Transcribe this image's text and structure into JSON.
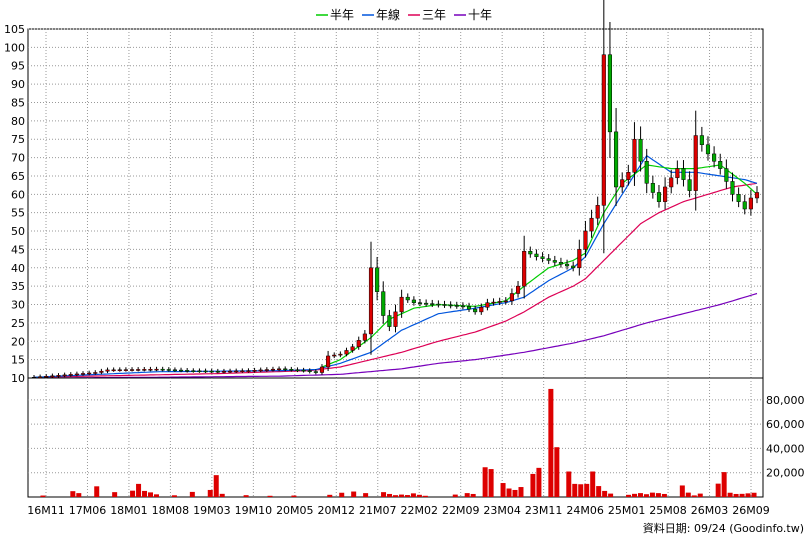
{
  "chart_data": [
    {
      "type": "candlestick",
      "title": "",
      "legend": {
        "placement": "top-center",
        "items": [
          {
            "name": "半年",
            "color": "#00cc00"
          },
          {
            "name": "年線",
            "color": "#0055dd"
          },
          {
            "name": "三年",
            "color": "#dd0055"
          },
          {
            "name": "十年",
            "color": "#7700bb"
          }
        ]
      },
      "ylim": [
        10,
        105
      ],
      "y_ticks": [
        10,
        15,
        20,
        25,
        30,
        35,
        40,
        45,
        50,
        55,
        60,
        65,
        70,
        75,
        80,
        85,
        90,
        95,
        100,
        105
      ],
      "x_ticks": [
        "16M11",
        "17M06",
        "18M01",
        "18M08",
        "19M03",
        "19M10",
        "20M05",
        "20M12",
        "21M07",
        "22M02",
        "22M09",
        "23M04",
        "23M11",
        "24M06",
        "25M01",
        "25M08",
        "26M03",
        "26M09"
      ],
      "colors": {
        "up": "#dd0000",
        "down": "#00aa00",
        "grid": "#999999"
      },
      "x_range": [
        0,
        118
      ],
      "anchors": {
        "close": [
          [
            0,
            10.2
          ],
          [
            10,
            11.5
          ],
          [
            12,
            12.2
          ],
          [
            20,
            12.4
          ],
          [
            25,
            12.0
          ],
          [
            30,
            11.8
          ],
          [
            35,
            12.0
          ],
          [
            40,
            12.5
          ],
          [
            44,
            12.0
          ],
          [
            46,
            11.5
          ],
          [
            47,
            13.0
          ],
          [
            48,
            16.0
          ],
          [
            50,
            16.5
          ],
          [
            52,
            18.5
          ],
          [
            54,
            22.0
          ],
          [
            55,
            40.0
          ],
          [
            57,
            27.0
          ],
          [
            58,
            24.0
          ],
          [
            60,
            32.0
          ],
          [
            62,
            30.5
          ],
          [
            66,
            30.0
          ],
          [
            70,
            29.5
          ],
          [
            72,
            28.0
          ],
          [
            74,
            30.5
          ],
          [
            77,
            31.0
          ],
          [
            79,
            35.0
          ],
          [
            80,
            44.5
          ],
          [
            82,
            43.0
          ],
          [
            84,
            42.0
          ],
          [
            86,
            41.0
          ],
          [
            88,
            40.0
          ],
          [
            90,
            50.0
          ],
          [
            92,
            57.0
          ],
          [
            93,
            98.0
          ],
          [
            94,
            77.0
          ],
          [
            95,
            62.0
          ],
          [
            97,
            66.0
          ],
          [
            98,
            75.0
          ],
          [
            100,
            63.0
          ],
          [
            102,
            58.0
          ],
          [
            103,
            62.0
          ],
          [
            105,
            67.0
          ],
          [
            107,
            61.0
          ],
          [
            108,
            76.0
          ],
          [
            110,
            71.0
          ],
          [
            112,
            67.0
          ],
          [
            114,
            60.0
          ],
          [
            116,
            56.0
          ],
          [
            117,
            59.0
          ],
          [
            118,
            60.5
          ]
        ],
        "sma_half": [
          [
            47,
            13.0
          ],
          [
            50,
            15.0
          ],
          [
            55,
            21.0
          ],
          [
            58,
            26.0
          ],
          [
            62,
            29.0
          ],
          [
            66,
            30.0
          ],
          [
            72,
            29.5
          ],
          [
            77,
            31.0
          ],
          [
            80,
            35.0
          ],
          [
            84,
            40.0
          ],
          [
            88,
            42.0
          ],
          [
            90,
            44.0
          ],
          [
            93,
            55.0
          ],
          [
            96,
            63.0
          ],
          [
            100,
            68.0
          ],
          [
            104,
            67.0
          ],
          [
            108,
            67.0
          ],
          [
            112,
            68.0
          ],
          [
            116,
            63.0
          ],
          [
            118,
            60.0
          ]
        ],
        "sma_year": [
          [
            0,
            10.2
          ],
          [
            20,
            11.7
          ],
          [
            40,
            12.0
          ],
          [
            46,
            12.3
          ],
          [
            50,
            14.0
          ],
          [
            55,
            17.0
          ],
          [
            60,
            23.0
          ],
          [
            66,
            27.5
          ],
          [
            72,
            29.0
          ],
          [
            77,
            30.5
          ],
          [
            80,
            32.0
          ],
          [
            84,
            36.5
          ],
          [
            88,
            40.0
          ],
          [
            90,
            43.0
          ],
          [
            93,
            52.0
          ],
          [
            96,
            60.0
          ],
          [
            99,
            68.0
          ],
          [
            100,
            70.5
          ],
          [
            104,
            66.0
          ],
          [
            108,
            66.0
          ],
          [
            112,
            65.0
          ],
          [
            116,
            64.0
          ],
          [
            118,
            63.0
          ]
        ],
        "sma_three": [
          [
            0,
            10.2
          ],
          [
            30,
            11.2
          ],
          [
            45,
            12.0
          ],
          [
            50,
            13.0
          ],
          [
            55,
            15.0
          ],
          [
            60,
            17.0
          ],
          [
            66,
            20.0
          ],
          [
            72,
            22.5
          ],
          [
            77,
            25.5
          ],
          [
            80,
            28.0
          ],
          [
            84,
            32.0
          ],
          [
            88,
            35.0
          ],
          [
            90,
            37.0
          ],
          [
            93,
            42.0
          ],
          [
            96,
            47.0
          ],
          [
            99,
            52.0
          ],
          [
            102,
            55.0
          ],
          [
            106,
            58.0
          ],
          [
            110,
            60.0
          ],
          [
            114,
            62.0
          ],
          [
            116,
            62.5
          ],
          [
            118,
            63.0
          ]
        ],
        "sma_ten": [
          [
            0,
            10.0
          ],
          [
            20,
            10.2
          ],
          [
            40,
            10.5
          ],
          [
            50,
            11.0
          ],
          [
            60,
            12.5
          ],
          [
            66,
            14.0
          ],
          [
            72,
            15.0
          ],
          [
            80,
            17.0
          ],
          [
            88,
            19.5
          ],
          [
            93,
            21.5
          ],
          [
            100,
            25.0
          ],
          [
            106,
            27.5
          ],
          [
            112,
            30.0
          ],
          [
            118,
            33.0
          ]
        ]
      },
      "volume": {
        "y_ticks": [
          20000,
          40000,
          60000,
          80000
        ],
        "y_tick_labels": [
          "20,000",
          "40,000",
          "60,000",
          "80,000"
        ],
        "ylim": [
          0,
          98000
        ],
        "bars": [
          [
            2,
            1200
          ],
          [
            7,
            4800
          ],
          [
            8,
            3200
          ],
          [
            11,
            8800
          ],
          [
            14,
            4000
          ],
          [
            17,
            5200
          ],
          [
            18,
            10800
          ],
          [
            19,
            5000
          ],
          [
            20,
            3800
          ],
          [
            21,
            2200
          ],
          [
            24,
            1400
          ],
          [
            27,
            4200
          ],
          [
            30,
            5800
          ],
          [
            31,
            18000
          ],
          [
            32,
            2600
          ],
          [
            36,
            1500
          ],
          [
            40,
            1000
          ],
          [
            44,
            1200
          ],
          [
            50,
            1800
          ],
          [
            52,
            3500
          ],
          [
            54,
            4500
          ],
          [
            56,
            3200
          ],
          [
            59,
            4000
          ],
          [
            60,
            2500
          ],
          [
            61,
            1500
          ],
          [
            62,
            2000
          ],
          [
            63,
            1600
          ],
          [
            64,
            3000
          ],
          [
            65,
            1800
          ],
          [
            66,
            1000
          ],
          [
            71,
            2000
          ],
          [
            73,
            3200
          ],
          [
            74,
            2500
          ],
          [
            76,
            24500
          ],
          [
            77,
            23000
          ],
          [
            79,
            11500
          ],
          [
            80,
            7000
          ],
          [
            81,
            5800
          ],
          [
            82,
            8200
          ],
          [
            84,
            19000
          ],
          [
            85,
            24000
          ],
          [
            87,
            89000
          ],
          [
            88,
            41000
          ],
          [
            90,
            21000
          ],
          [
            91,
            10800
          ],
          [
            92,
            10500
          ],
          [
            93,
            10800
          ],
          [
            94,
            21000
          ],
          [
            95,
            9000
          ],
          [
            96,
            5000
          ],
          [
            97,
            2800
          ],
          [
            100,
            1800
          ],
          [
            101,
            2600
          ],
          [
            102,
            3200
          ],
          [
            103,
            2300
          ],
          [
            104,
            3600
          ],
          [
            105,
            3200
          ],
          [
            106,
            2500
          ],
          [
            109,
            9500
          ],
          [
            110,
            3600
          ],
          [
            111,
            1300
          ],
          [
            112,
            2800
          ],
          [
            115,
            11000
          ],
          [
            116,
            20500
          ],
          [
            117,
            3500
          ],
          [
            118,
            2500
          ],
          [
            119,
            2600
          ],
          [
            120,
            3000
          ],
          [
            121,
            3500
          ]
        ]
      }
    }
  ],
  "footer": {
    "source": "資料日期: 09/24 (Goodinfo.tw)"
  }
}
